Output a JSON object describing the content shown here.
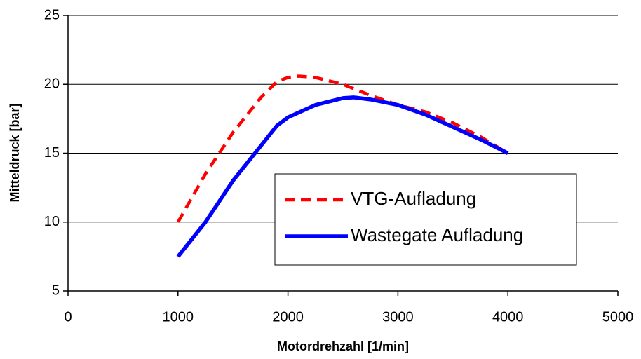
{
  "chart_data": {
    "type": "line",
    "xlabel": "Motordrehzahl [1/min]",
    "ylabel": "Mitteldruck [bar]",
    "xlim": [
      0,
      5000
    ],
    "xticks": [
      0,
      1000,
      2000,
      3000,
      4000,
      5000
    ],
    "ylim": [
      5,
      25
    ],
    "yticks": [
      5,
      10,
      15,
      20,
      25
    ],
    "grid": true,
    "legend_position": "lower right",
    "series": [
      {
        "name": "VTG-Aufladung",
        "color": "#ff0000",
        "dashed": true,
        "x": [
          1000,
          1250,
          1500,
          1750,
          1900,
          2000,
          2100,
          2250,
          2500,
          2750,
          3000,
          3250,
          3500,
          3750,
          4000
        ],
        "values": [
          10,
          13.5,
          16.5,
          19,
          20.2,
          20.5,
          20.6,
          20.5,
          20.0,
          19.2,
          18.5,
          18.0,
          17.2,
          16.2,
          15
        ]
      },
      {
        "name": "Wastegate Aufladung",
        "color": "#0000ff",
        "dashed": false,
        "x": [
          1000,
          1250,
          1500,
          1750,
          1900,
          2000,
          2250,
          2500,
          2600,
          2750,
          3000,
          3250,
          3500,
          3750,
          4000
        ],
        "values": [
          7.5,
          10,
          13,
          15.5,
          17,
          17.6,
          18.5,
          19.0,
          19.05,
          18.9,
          18.5,
          17.8,
          16.9,
          16.0,
          15
        ]
      }
    ]
  }
}
